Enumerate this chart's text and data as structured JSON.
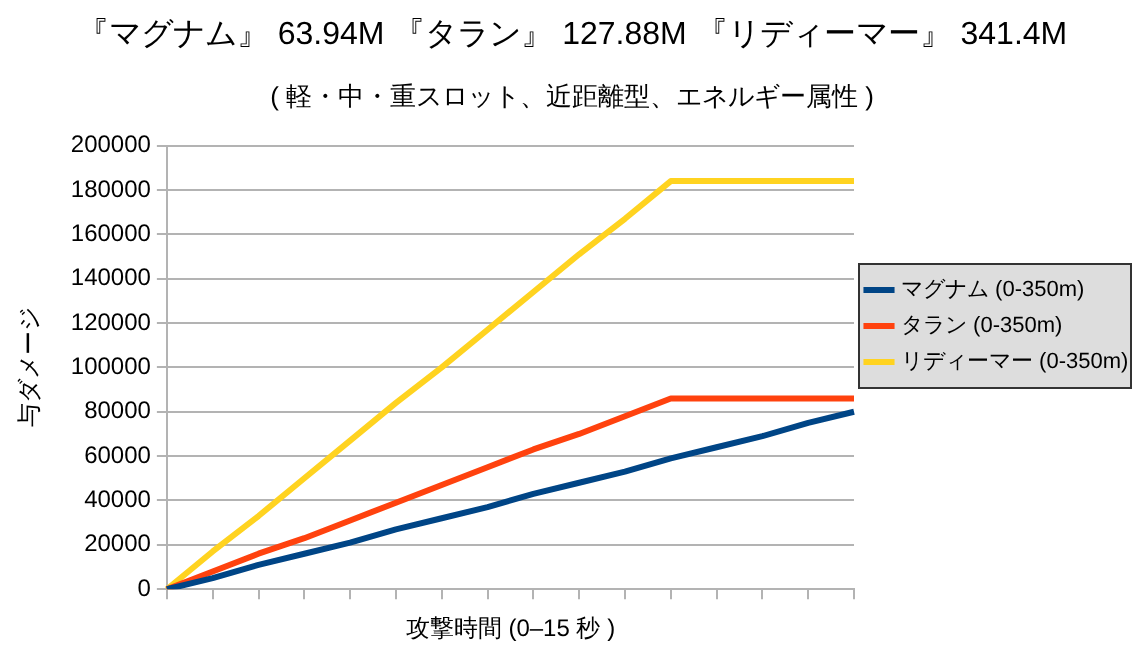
{
  "chart_data": {
    "type": "line",
    "title": "『マグナム』 63.94M 『タラン』 127.88M 『リディーマー』 341.4M",
    "subtitle": "( 軽・中・重スロット、近距離型、エネルギー属性 )",
    "xlabel": "攻撃時間 (0–15 秒 )",
    "ylabel": "与ダメージ",
    "categories": [
      null,
      null,
      null,
      null,
      null,
      null,
      null,
      null,
      null,
      null,
      null,
      null,
      null,
      null,
      null,
      null
    ],
    "series": [
      {
        "name": "マグナム (0-350m)",
        "color": "#004586",
        "values": [
          0,
          5000,
          11000,
          16000,
          21000,
          27000,
          32000,
          37000,
          43000,
          48000,
          53000,
          59000,
          64000,
          69000,
          75000,
          80000
        ]
      },
      {
        "name": "タラン (0-350m)",
        "color": "#ff420e",
        "values": [
          0,
          8000,
          16000,
          23000,
          31000,
          39000,
          47000,
          55000,
          63000,
          70000,
          78000,
          86000,
          86000,
          86000,
          86000,
          86000
        ]
      },
      {
        "name": "リディーマー (0-350m)",
        "color": "#ffd320",
        "values": [
          0,
          17000,
          33000,
          50000,
          67000,
          84000,
          100000,
          117000,
          134000,
          151000,
          167000,
          184000,
          184000,
          184000,
          184000,
          184000
        ]
      }
    ],
    "ylim": [
      0,
      200000
    ],
    "yticks": [
      0,
      20000,
      40000,
      60000,
      80000,
      100000,
      120000,
      140000,
      160000,
      180000,
      200000
    ],
    "grid": "y",
    "legend": "right",
    "marker": "none",
    "line_style": "solid",
    "tick_labels": "y"
  }
}
